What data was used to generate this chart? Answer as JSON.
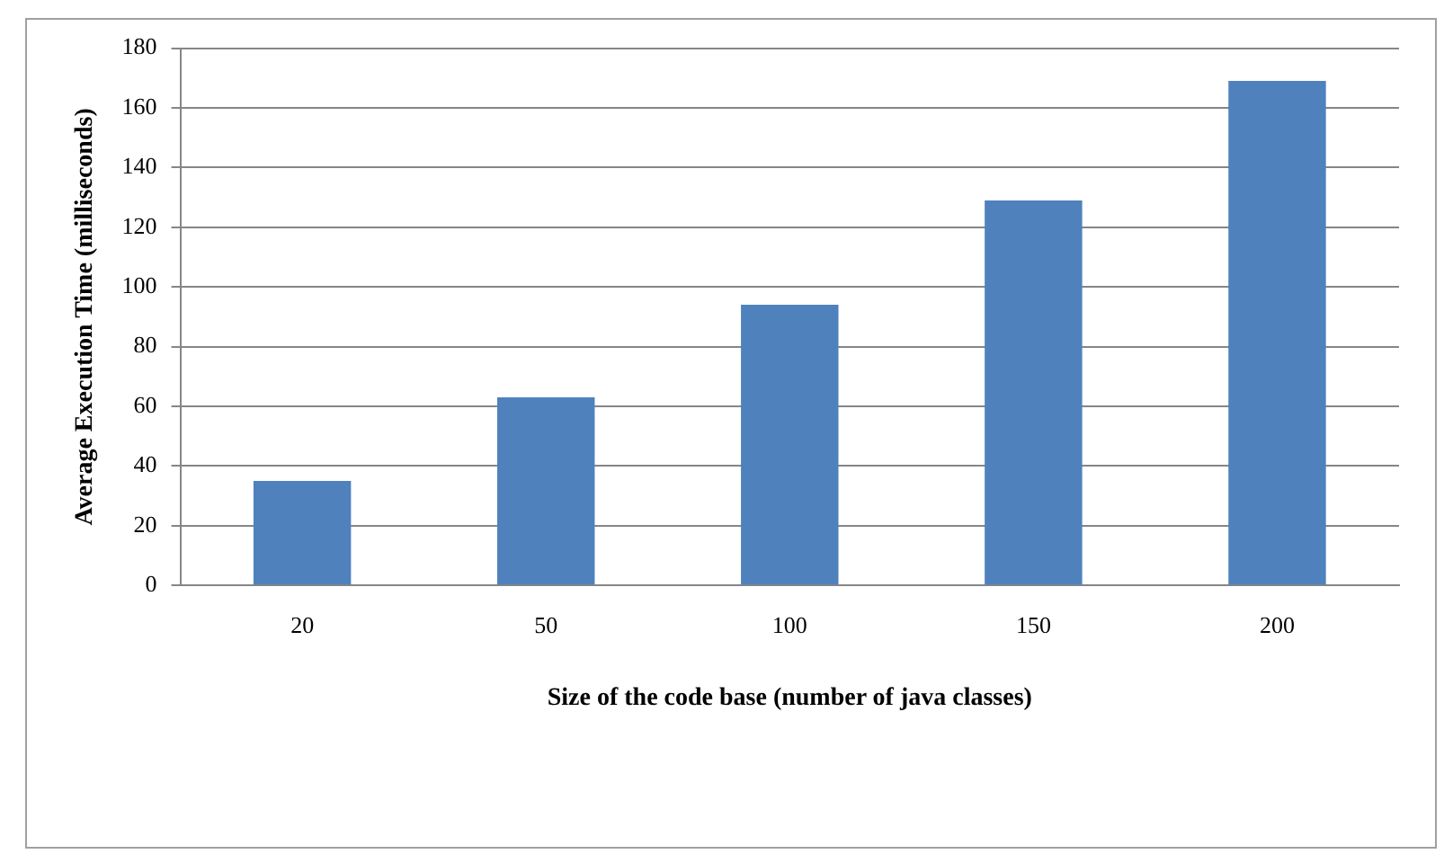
{
  "chart_data": {
    "type": "bar",
    "xlabel": "Size of the code base (number of java classes)",
    "ylabel": "Average Execution Time (milliseconds)",
    "categories": [
      "20",
      "50",
      "100",
      "150",
      "200"
    ],
    "values": [
      35,
      63,
      94,
      129,
      169
    ],
    "color": "#4f81bd",
    "ylim": [
      0,
      180
    ],
    "yticks": [
      0,
      20,
      40,
      60,
      80,
      100,
      120,
      140,
      160,
      180
    ],
    "grid": "y",
    "legend": false
  }
}
